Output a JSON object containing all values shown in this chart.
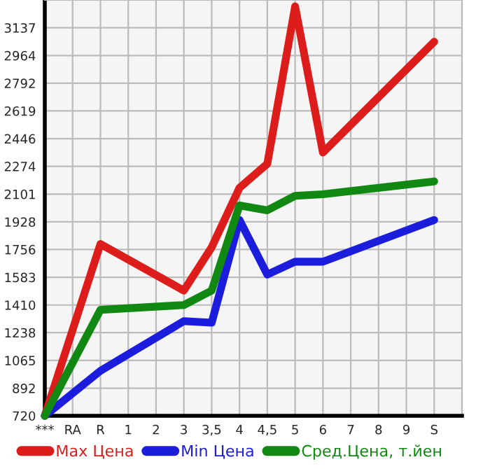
{
  "chart_data": {
    "type": "line",
    "categories": [
      "***",
      "RA",
      "R",
      "1",
      "2",
      "3",
      "3,5",
      "4",
      "4,5",
      "5",
      "6",
      "7",
      "8",
      "9",
      "S"
    ],
    "series": [
      {
        "name": "Max Цена",
        "color": "#dd1c1c",
        "values": [
          720,
          null,
          1790,
          null,
          null,
          1500,
          1770,
          2140,
          2290,
          3270,
          2360,
          null,
          null,
          null,
          3050
        ]
      },
      {
        "name": "Min Цена",
        "color": "#1c1cdd",
        "values": [
          720,
          null,
          1000,
          null,
          null,
          1310,
          1300,
          1940,
          1600,
          1680,
          1680,
          null,
          null,
          null,
          1940
        ]
      },
      {
        "name": "Сред.Цена, т.йен",
        "color": "#118811",
        "values": [
          720,
          null,
          1380,
          null,
          null,
          1410,
          1500,
          2030,
          2000,
          2090,
          2100,
          null,
          null,
          null,
          2180
        ]
      }
    ],
    "ylim": [
      720,
      3310
    ],
    "yticks": [
      720,
      892,
      1065,
      1238,
      1410,
      1583,
      1756,
      1928,
      2101,
      2274,
      2446,
      2619,
      2792,
      2964,
      3137
    ],
    "grid": true,
    "legend": "bottom",
    "marker": "none",
    "line_style": "solid"
  }
}
